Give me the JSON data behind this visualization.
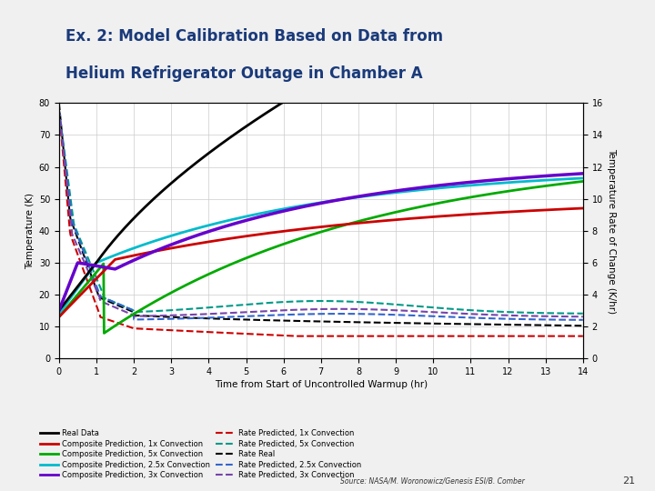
{
  "title_line1": "Ex. 2: Model Calibration Based on Data from",
  "title_line2": "Helium Refrigerator Outage in Chamber A",
  "xlabel": "Time from Start of Uncontrolled Warmup (hr)",
  "ylabel_left": "Temperature (K)",
  "ylabel_right": "Temperature Rate of Change (K/hr)",
  "xlim": [
    0,
    14
  ],
  "ylim_left": [
    0,
    80
  ],
  "ylim_right": [
    0,
    16
  ],
  "xticks": [
    0,
    1,
    2,
    3,
    4,
    5,
    6,
    7,
    8,
    9,
    10,
    11,
    12,
    13,
    14
  ],
  "yticks_left": [
    0,
    10,
    20,
    30,
    40,
    50,
    60,
    70,
    80
  ],
  "yticks_right": [
    0,
    2,
    4,
    6,
    8,
    10,
    12,
    14,
    16
  ],
  "background_color": "#ffffff",
  "grid_color": "#cccccc",
  "source_text": "Source: NASA/M. Woronowicz/Genesis ESI/B. Comber",
  "page_number": "21",
  "header_bg": "#e8e8e8",
  "title_color": "#1a5276"
}
